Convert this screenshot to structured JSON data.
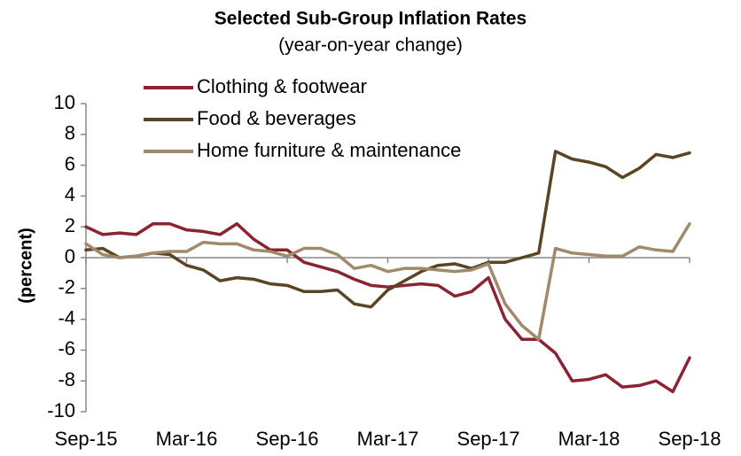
{
  "chart_data": {
    "type": "line",
    "title": "Selected Sub-Group Inflation Rates",
    "subtitle": "(year-on-year change)",
    "y_label": "(percent)",
    "categories": [
      "Sep-15",
      null,
      null,
      null,
      null,
      null,
      "Mar-16",
      null,
      null,
      null,
      null,
      null,
      "Sep-16",
      null,
      null,
      null,
      null,
      null,
      "Mar-17",
      null,
      null,
      null,
      null,
      null,
      "Sep-17",
      null,
      null,
      null,
      null,
      null,
      "Mar-18",
      null,
      null,
      null,
      null,
      null,
      "Sep-18"
    ],
    "series": [
      {
        "name": "Clothing & footwear",
        "color": "#8b2332",
        "values": [
          2.0,
          1.5,
          1.6,
          1.5,
          2.2,
          2.2,
          1.8,
          1.7,
          1.5,
          2.2,
          1.2,
          0.5,
          0.5,
          -0.3,
          -0.6,
          -0.9,
          -1.4,
          -1.8,
          -1.9,
          -1.8,
          -1.7,
          -1.8,
          -2.5,
          -2.2,
          -1.3,
          -4.0,
          -5.3,
          -5.3,
          -6.2,
          -8.0,
          -7.9,
          -7.6,
          -8.4,
          -8.3,
          -8.0,
          -8.7,
          -6.5
        ]
      },
      {
        "name": "Food & beverages",
        "color": "#5a4422",
        "values": [
          0.5,
          0.6,
          0.0,
          0.1,
          0.3,
          0.2,
          -0.5,
          -0.8,
          -1.5,
          -1.3,
          -1.4,
          -1.7,
          -1.8,
          -2.2,
          -2.2,
          -2.1,
          -3.0,
          -3.2,
          -2.1,
          -1.5,
          -0.9,
          -0.5,
          -0.4,
          -0.7,
          -0.3,
          -0.3,
          0.0,
          0.3,
          6.9,
          6.4,
          6.2,
          5.9,
          5.2,
          5.8,
          6.7,
          6.5,
          6.8
        ]
      },
      {
        "name": "Home furniture & maintenance",
        "color": "#a08a6a",
        "values": [
          0.9,
          0.2,
          0.0,
          0.1,
          0.3,
          0.4,
          0.4,
          1.0,
          0.9,
          0.9,
          0.5,
          0.4,
          0.1,
          0.6,
          0.6,
          0.2,
          -0.7,
          -0.5,
          -0.9,
          -0.7,
          -0.7,
          -0.8,
          -0.9,
          -0.8,
          -0.4,
          -3.0,
          -4.4,
          -5.3,
          0.6,
          0.3,
          0.2,
          0.1,
          0.1,
          0.7,
          0.5,
          0.4,
          2.2
        ]
      }
    ],
    "ylim": [
      -10,
      10
    ],
    "yticks": [
      -10,
      -8,
      -6,
      -4,
      -2,
      0,
      2,
      4,
      6,
      8,
      10
    ],
    "legend": "upper left"
  }
}
